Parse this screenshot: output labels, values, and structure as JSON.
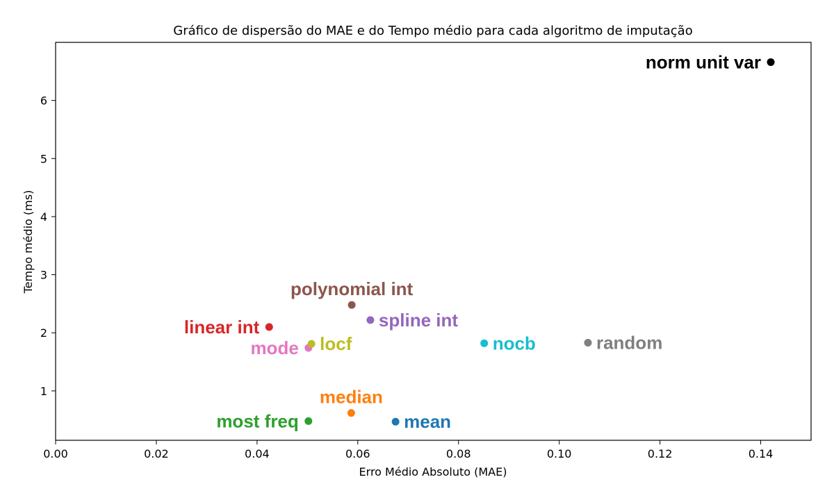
{
  "chart_data": {
    "type": "scatter",
    "title": "Gráfico de dispersão do MAE e do Tempo médio para cada algoritmo de imputação",
    "xlabel": "Erro Médio Absoluto (MAE)",
    "ylabel": "Tempo médio (ms)",
    "xlim": [
      0.0,
      0.15
    ],
    "ylim": [
      0.15,
      7.0
    ],
    "xticks": [
      0.0,
      0.02,
      0.04,
      0.06,
      0.08,
      0.1,
      0.12,
      0.14
    ],
    "xtick_labels": [
      "0.00",
      "0.02",
      "0.04",
      "0.06",
      "0.08",
      "0.10",
      "0.12",
      "0.14"
    ],
    "yticks": [
      1,
      2,
      3,
      4,
      5,
      6
    ],
    "ytick_labels": [
      "1",
      "2",
      "3",
      "4",
      "5",
      "6"
    ],
    "grid": false,
    "points": [
      {
        "label": "mean",
        "x": 0.0675,
        "y": 0.47,
        "color": "#1f77b4",
        "label_side": "right"
      },
      {
        "label": "median",
        "x": 0.0587,
        "y": 0.62,
        "color": "#ff7f0e",
        "label_side": "above"
      },
      {
        "label": "most freq",
        "x": 0.0502,
        "y": 0.48,
        "color": "#2ca02c",
        "label_side": "left"
      },
      {
        "label": "linear int",
        "x": 0.0424,
        "y": 2.1,
        "color": "#d62728",
        "label_side": "left"
      },
      {
        "label": "spline int",
        "x": 0.0625,
        "y": 2.22,
        "color": "#9467bd",
        "label_side": "right"
      },
      {
        "label": "polynomial int",
        "x": 0.0588,
        "y": 2.48,
        "color": "#8c564b",
        "label_side": "above"
      },
      {
        "label": "mode",
        "x": 0.0502,
        "y": 1.74,
        "color": "#e377c2",
        "label_side": "left"
      },
      {
        "label": "random",
        "x": 0.1057,
        "y": 1.83,
        "color": "#7f7f7f",
        "label_side": "right"
      },
      {
        "label": "locf",
        "x": 0.0508,
        "y": 1.81,
        "color": "#bcbd22",
        "label_side": "right"
      },
      {
        "label": "nocb",
        "x": 0.0851,
        "y": 1.82,
        "color": "#17becf",
        "label_side": "right"
      },
      {
        "label": "norm unit var",
        "x": 0.142,
        "y": 6.66,
        "color": "#000000",
        "label_side": "left"
      }
    ]
  }
}
